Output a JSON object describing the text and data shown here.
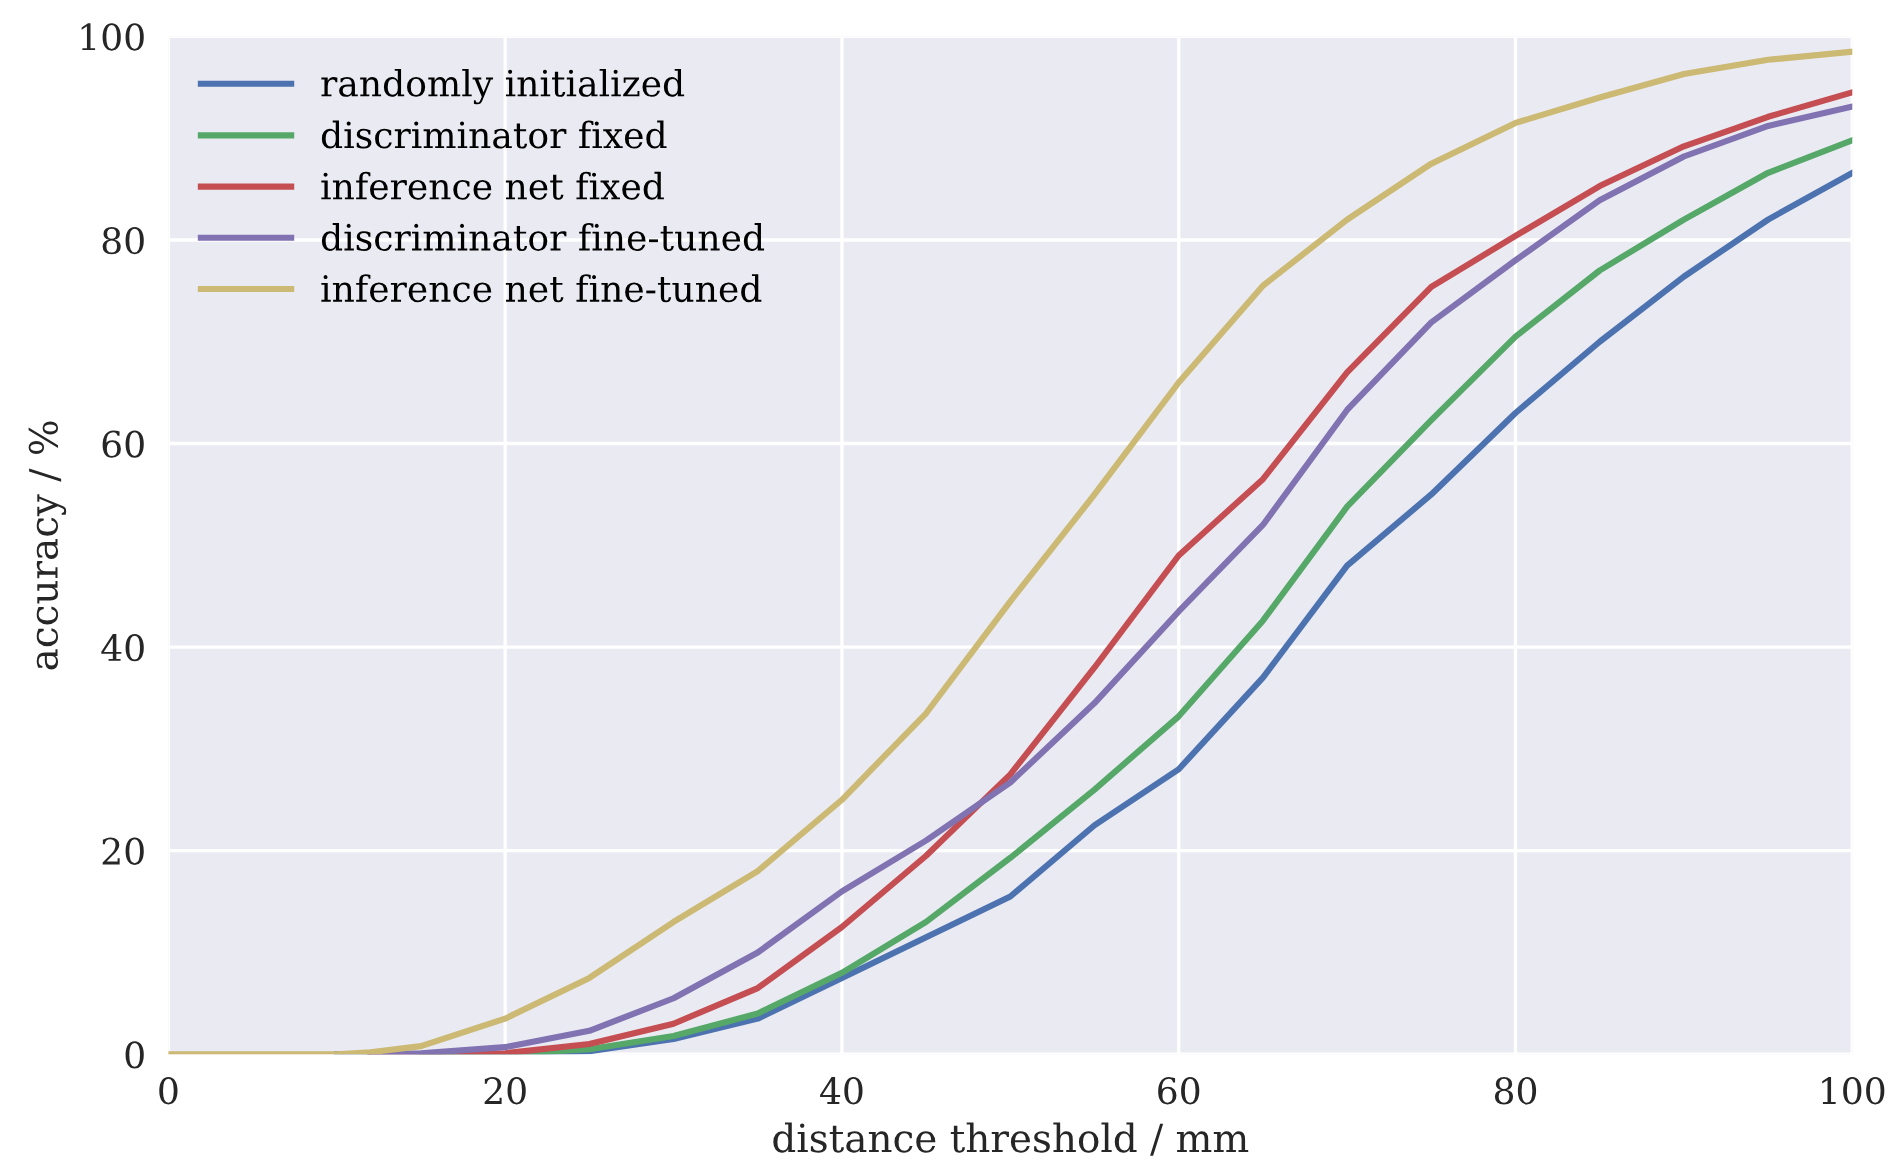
{
  "chart_data": {
    "type": "line",
    "xlabel": "distance threshold / mm",
    "ylabel": "accuracy / %",
    "x": [
      0,
      5,
      10,
      12,
      15,
      20,
      25,
      30,
      35,
      40,
      45,
      50,
      55,
      60,
      65,
      70,
      75,
      80,
      85,
      90,
      95,
      100
    ],
    "xlim": [
      0,
      100
    ],
    "ylim": [
      0,
      100
    ],
    "xticks": [
      0,
      20,
      40,
      60,
      80,
      100
    ],
    "yticks": [
      0,
      20,
      40,
      60,
      80,
      100
    ],
    "grid": true,
    "legend": "top left",
    "marker": "none",
    "line_style": "solid",
    "series": [
      {
        "name": "randomly initialized",
        "color": "#4c72b0",
        "values": [
          null,
          null,
          0,
          0,
          0,
          0,
          0.3,
          1.5,
          3.5,
          7.5,
          11.5,
          15.5,
          22.5,
          28,
          37,
          48,
          55,
          63,
          70,
          76.4,
          82,
          86.6
        ]
      },
      {
        "name": "discriminator fixed",
        "color": "#55a868",
        "values": [
          null,
          null,
          null,
          null,
          0,
          0,
          0.5,
          1.8,
          4,
          8,
          13,
          19.3,
          26,
          33.2,
          42.6,
          53.8,
          62.3,
          70.5,
          77,
          82,
          86.6,
          89.8
        ]
      },
      {
        "name": "inference net fixed",
        "color": "#c44e52",
        "values": [
          null,
          null,
          null,
          0,
          0,
          0.1,
          1,
          3,
          6.5,
          12.5,
          19.5,
          27.5,
          38,
          49,
          56.5,
          67,
          75.4,
          80.4,
          85.3,
          89.2,
          92.1,
          94.5
        ]
      },
      {
        "name": "discriminator fine-tuned",
        "color": "#8172b2",
        "values": [
          null,
          null,
          null,
          0,
          0.1,
          0.7,
          2.3,
          5.5,
          10,
          16,
          21,
          26.7,
          34.5,
          43.5,
          52,
          63.3,
          71.9,
          78,
          83.9,
          88.2,
          91.2,
          93.1
        ]
      },
      {
        "name": "inference net fine-tuned",
        "color": "#ccb974",
        "values": [
          0,
          0,
          0,
          0.2,
          0.8,
          3.5,
          7.5,
          13,
          18,
          25,
          33.5,
          44.5,
          55,
          66,
          75.5,
          82,
          87.5,
          91.5,
          94,
          96.3,
          97.7,
          98.5
        ]
      }
    ]
  }
}
